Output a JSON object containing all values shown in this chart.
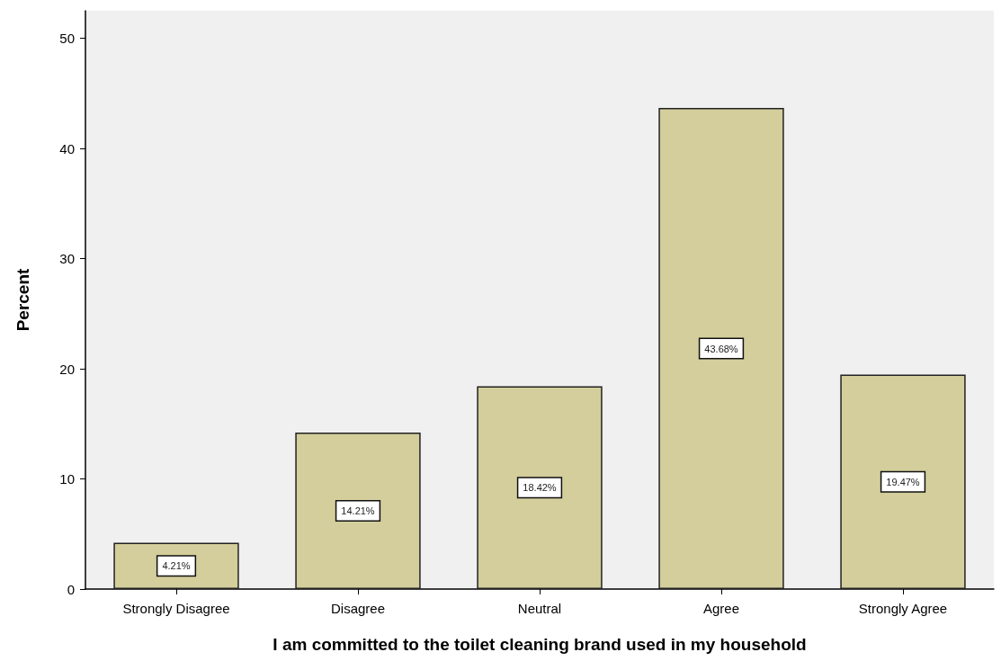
{
  "chart_data": {
    "type": "bar",
    "xlabel": "I am committed to the toilet cleaning brand used in my household",
    "ylabel": "Percent",
    "categories": [
      "Strongly Disagree",
      "Disagree",
      "Neutral",
      "Agree",
      "Strongly Agree"
    ],
    "values": [
      4.21,
      14.21,
      18.42,
      43.68,
      19.47
    ],
    "value_labels": [
      "4.21%",
      "14.21%",
      "18.42%",
      "43.68%",
      "19.47%"
    ],
    "color": "#d3ce9b",
    "ylim": [
      0,
      52.5
    ],
    "yticks": [
      0,
      10,
      20,
      30,
      40,
      50
    ]
  }
}
